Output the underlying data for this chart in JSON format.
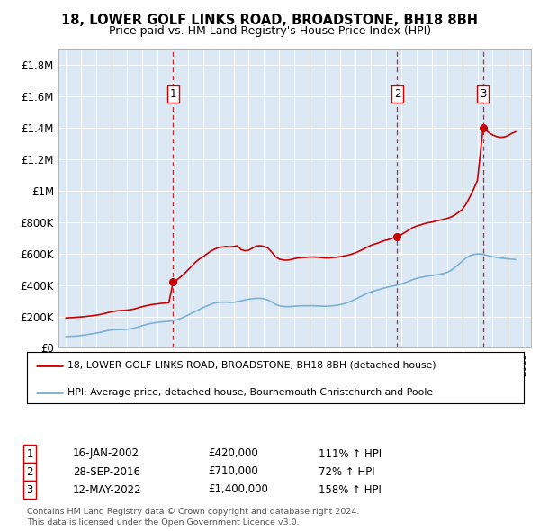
{
  "title": "18, LOWER GOLF LINKS ROAD, BROADSTONE, BH18 8BH",
  "subtitle": "Price paid vs. HM Land Registry's House Price Index (HPI)",
  "background_color": "#dce9f5",
  "red_line_color": "#cc0000",
  "blue_line_color": "#7ab0d4",
  "ylim": [
    0,
    1900000
  ],
  "yticks": [
    0,
    200000,
    400000,
    600000,
    800000,
    1000000,
    1200000,
    1400000,
    1600000,
    1800000
  ],
  "ytick_labels": [
    "£0",
    "£200K",
    "£400K",
    "£600K",
    "£800K",
    "£1M",
    "£1.2M",
    "£1.4M",
    "£1.6M",
    "£1.8M"
  ],
  "xlim_start": 1994.5,
  "xlim_end": 2025.5,
  "purchase_dates": [
    2002.04,
    2016.74,
    2022.37
  ],
  "purchase_prices": [
    420000,
    710000,
    1400000
  ],
  "purchase_labels": [
    "1",
    "2",
    "3"
  ],
  "legend_red": "18, LOWER GOLF LINKS ROAD, BROADSTONE, BH18 8BH (detached house)",
  "legend_blue": "HPI: Average price, detached house, Bournemouth Christchurch and Poole",
  "table_data": [
    [
      "1",
      "16-JAN-2002",
      "£420,000",
      "111% ↑ HPI"
    ],
    [
      "2",
      "28-SEP-2016",
      "£710,000",
      "72% ↑ HPI"
    ],
    [
      "3",
      "12-MAY-2022",
      "£1,400,000",
      "158% ↑ HPI"
    ]
  ],
  "footnote": "Contains HM Land Registry data © Crown copyright and database right 2024.\nThis data is licensed under the Open Government Licence v3.0.",
  "red_hpi_data": {
    "years": [
      1995.0,
      1995.25,
      1995.5,
      1995.75,
      1996.0,
      1996.25,
      1996.5,
      1996.75,
      1997.0,
      1997.25,
      1997.5,
      1997.75,
      1998.0,
      1998.25,
      1998.5,
      1998.75,
      1999.0,
      1999.25,
      1999.5,
      1999.75,
      2000.0,
      2000.25,
      2000.5,
      2000.75,
      2001.0,
      2001.25,
      2001.5,
      2001.75,
      2002.04,
      2002.25,
      2002.5,
      2002.75,
      2003.0,
      2003.25,
      2003.5,
      2003.75,
      2004.0,
      2004.25,
      2004.5,
      2004.75,
      2005.0,
      2005.25,
      2005.5,
      2005.75,
      2006.0,
      2006.25,
      2006.5,
      2006.75,
      2007.0,
      2007.25,
      2007.5,
      2007.75,
      2008.0,
      2008.25,
      2008.5,
      2008.75,
      2009.0,
      2009.25,
      2009.5,
      2009.75,
      2010.0,
      2010.25,
      2010.5,
      2010.75,
      2011.0,
      2011.25,
      2011.5,
      2011.75,
      2012.0,
      2012.25,
      2012.5,
      2012.75,
      2013.0,
      2013.25,
      2013.5,
      2013.75,
      2014.0,
      2014.25,
      2014.5,
      2014.75,
      2015.0,
      2015.25,
      2015.5,
      2015.75,
      2016.0,
      2016.25,
      2016.5,
      2016.74,
      2017.0,
      2017.25,
      2017.5,
      2017.75,
      2018.0,
      2018.25,
      2018.5,
      2018.75,
      2019.0,
      2019.25,
      2019.5,
      2019.75,
      2020.0,
      2020.25,
      2020.5,
      2020.75,
      2021.0,
      2021.25,
      2021.5,
      2021.75,
      2022.0,
      2022.37,
      2022.5,
      2022.75,
      2023.0,
      2023.25,
      2023.5,
      2023.75,
      2024.0,
      2024.25,
      2024.5
    ],
    "values": [
      190000,
      192000,
      193000,
      195000,
      197000,
      199000,
      202000,
      205000,
      208000,
      212000,
      218000,
      224000,
      230000,
      234000,
      237000,
      238000,
      240000,
      243000,
      248000,
      255000,
      262000,
      268000,
      273000,
      277000,
      280000,
      283000,
      285000,
      287000,
      420000,
      430000,
      450000,
      470000,
      495000,
      520000,
      545000,
      565000,
      580000,
      598000,
      615000,
      628000,
      638000,
      642000,
      645000,
      643000,
      645000,
      650000,
      625000,
      618000,
      622000,
      635000,
      648000,
      650000,
      645000,
      635000,
      610000,
      580000,
      565000,
      560000,
      558000,
      562000,
      568000,
      572000,
      575000,
      576000,
      578000,
      578000,
      577000,
      575000,
      572000,
      572000,
      575000,
      577000,
      580000,
      585000,
      590000,
      597000,
      605000,
      616000,
      627000,
      640000,
      652000,
      660000,
      668000,
      678000,
      685000,
      692000,
      700000,
      710000,
      720000,
      735000,
      750000,
      765000,
      775000,
      782000,
      790000,
      796000,
      800000,
      806000,
      812000,
      818000,
      824000,
      832000,
      845000,
      862000,
      880000,
      915000,
      960000,
      1010000,
      1065000,
      1400000,
      1390000,
      1370000,
      1355000,
      1345000,
      1340000,
      1342000,
      1350000,
      1365000,
      1375000
    ]
  },
  "blue_hpi_data": {
    "years": [
      1995.0,
      1995.25,
      1995.5,
      1995.75,
      1996.0,
      1996.25,
      1996.5,
      1996.75,
      1997.0,
      1997.25,
      1997.5,
      1997.75,
      1998.0,
      1998.25,
      1998.5,
      1998.75,
      1999.0,
      1999.25,
      1999.5,
      1999.75,
      2000.0,
      2000.25,
      2000.5,
      2000.75,
      2001.0,
      2001.25,
      2001.5,
      2001.75,
      2002.0,
      2002.25,
      2002.5,
      2002.75,
      2003.0,
      2003.25,
      2003.5,
      2003.75,
      2004.0,
      2004.25,
      2004.5,
      2004.75,
      2005.0,
      2005.25,
      2005.5,
      2005.75,
      2006.0,
      2006.25,
      2006.5,
      2006.75,
      2007.0,
      2007.25,
      2007.5,
      2007.75,
      2008.0,
      2008.25,
      2008.5,
      2008.75,
      2009.0,
      2009.25,
      2009.5,
      2009.75,
      2010.0,
      2010.25,
      2010.5,
      2010.75,
      2011.0,
      2011.25,
      2011.5,
      2011.75,
      2012.0,
      2012.25,
      2012.5,
      2012.75,
      2013.0,
      2013.25,
      2013.5,
      2013.75,
      2014.0,
      2014.25,
      2014.5,
      2014.75,
      2015.0,
      2015.25,
      2015.5,
      2015.75,
      2016.0,
      2016.25,
      2016.5,
      2016.75,
      2017.0,
      2017.25,
      2017.5,
      2017.75,
      2018.0,
      2018.25,
      2018.5,
      2018.75,
      2019.0,
      2019.25,
      2019.5,
      2019.75,
      2020.0,
      2020.25,
      2020.5,
      2020.75,
      2021.0,
      2021.25,
      2021.5,
      2021.75,
      2022.0,
      2022.25,
      2022.5,
      2022.75,
      2023.0,
      2023.25,
      2023.5,
      2023.75,
      2024.0,
      2024.25,
      2024.5
    ],
    "values": [
      72000,
      73000,
      74000,
      76000,
      79000,
      82000,
      86000,
      90000,
      94000,
      99000,
      105000,
      110000,
      114000,
      116000,
      117000,
      117000,
      118000,
      121000,
      126000,
      133000,
      141000,
      148000,
      154000,
      158000,
      162000,
      165000,
      167000,
      169000,
      172000,
      178000,
      186000,
      196000,
      208000,
      220000,
      232000,
      244000,
      256000,
      267000,
      277000,
      285000,
      290000,
      291000,
      291000,
      289000,
      290000,
      294000,
      299000,
      305000,
      310000,
      313000,
      315000,
      315000,
      312000,
      305000,
      292000,
      278000,
      268000,
      264000,
      262000,
      263000,
      265000,
      267000,
      268000,
      268000,
      268000,
      268000,
      267000,
      266000,
      265000,
      266000,
      268000,
      271000,
      275000,
      281000,
      289000,
      299000,
      310000,
      322000,
      334000,
      346000,
      356000,
      363000,
      370000,
      377000,
      384000,
      390000,
      395000,
      400000,
      406000,
      415000,
      424000,
      434000,
      442000,
      448000,
      453000,
      457000,
      460000,
      464000,
      468000,
      473000,
      480000,
      492000,
      510000,
      530000,
      552000,
      572000,
      586000,
      594000,
      598000,
      597000,
      592000,
      586000,
      580000,
      576000,
      572000,
      569000,
      567000,
      565000,
      562000
    ]
  }
}
